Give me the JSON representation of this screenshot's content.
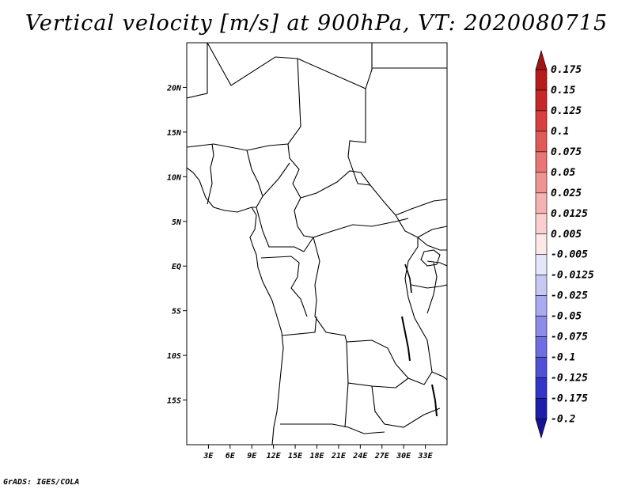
{
  "title": "Vertical velocity [m/s] at 900hPa, VT: 2020080715",
  "credit": "GrADS: IGES/COLA",
  "map": {
    "lon_range": [
      0,
      36
    ],
    "lat_range": [
      -20,
      25
    ],
    "lat_labels": [
      {
        "lat": 20,
        "label": "20N"
      },
      {
        "lat": 15,
        "label": "15N"
      },
      {
        "lat": 10,
        "label": "10N"
      },
      {
        "lat": 5,
        "label": "5N"
      },
      {
        "lat": 0,
        "label": "EQ"
      },
      {
        "lat": -5,
        "label": "5S"
      },
      {
        "lat": -10,
        "label": "10S"
      },
      {
        "lat": -15,
        "label": "15S"
      }
    ],
    "lon_labels": [
      {
        "lon": 3,
        "label": "3E"
      },
      {
        "lon": 6,
        "label": "6E"
      },
      {
        "lon": 9,
        "label": "9E"
      },
      {
        "lon": 12,
        "label": "12E"
      },
      {
        "lon": 15,
        "label": "15E"
      },
      {
        "lon": 18,
        "label": "18E"
      },
      {
        "lon": 21,
        "label": "21E"
      },
      {
        "lon": 24,
        "label": "24E"
      },
      {
        "lon": 27,
        "label": "27E"
      },
      {
        "lon": 30,
        "label": "30E"
      },
      {
        "lon": 33,
        "label": "33E"
      }
    ]
  },
  "colorbar": {
    "levels": [
      {
        "label": "0.175",
        "color": "#b71c1c"
      },
      {
        "label": "0.15",
        "color": "#c62828"
      },
      {
        "label": "0.125",
        "color": "#d84040"
      },
      {
        "label": "0.1",
        "color": "#e05a5a"
      },
      {
        "label": "0.075",
        "color": "#e87676"
      },
      {
        "label": "0.05",
        "color": "#ef9494"
      },
      {
        "label": "0.025",
        "color": "#f5b2b2"
      },
      {
        "label": "0.0125",
        "color": "#f9cfcf"
      },
      {
        "label": "0.005",
        "color": "#fde8e8"
      },
      {
        "label": "-0.005",
        "color": "#ffffff"
      },
      {
        "label": "-0.0125",
        "color": "#e6e6fb"
      },
      {
        "label": "-0.025",
        "color": "#c8c8f5"
      },
      {
        "label": "-0.05",
        "color": "#aaaaf0"
      },
      {
        "label": "-0.075",
        "color": "#8c8ce8"
      },
      {
        "label": "-0.1",
        "color": "#6e6ee0"
      },
      {
        "label": "-0.125",
        "color": "#5050d6"
      },
      {
        "label": "-0.175",
        "color": "#3434c8"
      },
      {
        "label": "-0.2",
        "color": "#1e1eaa"
      }
    ],
    "top_color": "#a01414",
    "bottom_color": "#141496"
  },
  "colors": {
    "up_strong": "#d84040",
    "up_weak": "#f5b2b2",
    "down_strong": "#6e6ee0",
    "down_weak": "#c8c8f5"
  }
}
